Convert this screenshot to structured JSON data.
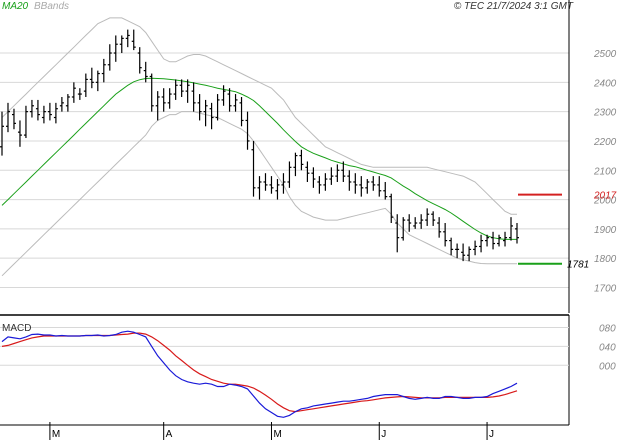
{
  "chart_data": {
    "type": "line",
    "legend": {
      "ma_label": "MA20",
      "bbands_label": "BBands"
    },
    "watermark": "© TEC 21/7/2024 3:1 GMT",
    "price_axis": {
      "ticks": [
        "2500",
        "2400",
        "2300",
        "2200",
        "2100",
        "2000",
        "1900",
        "1800",
        "1700"
      ],
      "ylim": [
        1630,
        2640
      ]
    },
    "macd_axis": {
      "label": "MACD",
      "ticks": [
        "080",
        "040",
        "000"
      ],
      "ylim": [
        -120,
        100
      ]
    },
    "x_ticks": [
      "M",
      "A",
      "M",
      "J",
      "J"
    ],
    "resistance": {
      "value": 2017,
      "label": "2017",
      "color": "#d42020"
    },
    "support": {
      "value": 1781,
      "label": "1781",
      "color": "#19a019"
    },
    "colors": {
      "ma": "#1aa01a",
      "bband": "#bbbbbb",
      "bars": "#000000",
      "macd": "#1a1ad8",
      "signal": "#d81a1a",
      "grid": "#d8d8d8"
    },
    "ohlc": [
      [
        2180,
        2300,
        2150,
        2250
      ],
      [
        2250,
        2330,
        2230,
        2300
      ],
      [
        2290,
        2310,
        2240,
        2260
      ],
      [
        2230,
        2270,
        2180,
        2220
      ],
      [
        2220,
        2320,
        2210,
        2300
      ],
      [
        2300,
        2340,
        2280,
        2320
      ],
      [
        2310,
        2340,
        2270,
        2290
      ],
      [
        2280,
        2320,
        2260,
        2300
      ],
      [
        2300,
        2330,
        2270,
        2290
      ],
      [
        2280,
        2330,
        2260,
        2310
      ],
      [
        2320,
        2350,
        2300,
        2330
      ],
      [
        2320,
        2360,
        2300,
        2350
      ],
      [
        2350,
        2400,
        2330,
        2380
      ],
      [
        2360,
        2380,
        2340,
        2360
      ],
      [
        2370,
        2430,
        2350,
        2410
      ],
      [
        2410,
        2450,
        2380,
        2400
      ],
      [
        2400,
        2440,
        2370,
        2430
      ],
      [
        2430,
        2480,
        2400,
        2460
      ],
      [
        2460,
        2530,
        2440,
        2500
      ],
      [
        2500,
        2560,
        2470,
        2530
      ],
      [
        2530,
        2560,
        2500,
        2550
      ],
      [
        2550,
        2580,
        2520,
        2560
      ],
      [
        2540,
        2580,
        2510,
        2520
      ],
      [
        2500,
        2520,
        2430,
        2450
      ],
      [
        2440,
        2470,
        2400,
        2420
      ],
      [
        2420,
        2430,
        2300,
        2320
      ],
      [
        2320,
        2370,
        2270,
        2350
      ],
      [
        2350,
        2380,
        2300,
        2330
      ],
      [
        2330,
        2380,
        2310,
        2360
      ],
      [
        2360,
        2410,
        2340,
        2390
      ],
      [
        2390,
        2410,
        2350,
        2370
      ],
      [
        2370,
        2410,
        2330,
        2390
      ],
      [
        2370,
        2400,
        2300,
        2330
      ],
      [
        2330,
        2360,
        2270,
        2300
      ],
      [
        2300,
        2340,
        2250,
        2320
      ],
      [
        2310,
        2330,
        2240,
        2280
      ],
      [
        2280,
        2360,
        2270,
        2340
      ],
      [
        2340,
        2390,
        2320,
        2370
      ],
      [
        2360,
        2380,
        2300,
        2320
      ],
      [
        2320,
        2360,
        2300,
        2340
      ],
      [
        2330,
        2350,
        2250,
        2270
      ],
      [
        2270,
        2300,
        2170,
        2200
      ],
      [
        2170,
        2200,
        2010,
        2040
      ],
      [
        2040,
        2080,
        2000,
        2060
      ],
      [
        2060,
        2090,
        2030,
        2050
      ],
      [
        2050,
        2080,
        2020,
        2040
      ],
      [
        2030,
        2070,
        2000,
        2050
      ],
      [
        2050,
        2090,
        2020,
        2060
      ],
      [
        2060,
        2130,
        2040,
        2110
      ],
      [
        2110,
        2160,
        2080,
        2150
      ],
      [
        2150,
        2170,
        2100,
        2120
      ],
      [
        2110,
        2130,
        2060,
        2090
      ],
      [
        2090,
        2110,
        2040,
        2070
      ],
      [
        2060,
        2080,
        2020,
        2050
      ],
      [
        2050,
        2090,
        2030,
        2070
      ],
      [
        2070,
        2110,
        2050,
        2080
      ],
      [
        2080,
        2120,
        2060,
        2100
      ],
      [
        2100,
        2130,
        2060,
        2080
      ],
      [
        2080,
        2100,
        2030,
        2060
      ],
      [
        2060,
        2090,
        2020,
        2050
      ],
      [
        2050,
        2080,
        2010,
        2040
      ],
      [
        2040,
        2070,
        2020,
        2060
      ],
      [
        2060,
        2080,
        2030,
        2050
      ],
      [
        2050,
        2080,
        2010,
        2030
      ],
      [
        2030,
        2060,
        2000,
        2010
      ],
      [
        2010,
        2020,
        1920,
        1940
      ],
      [
        1920,
        1950,
        1820,
        1870
      ],
      [
        1870,
        1940,
        1860,
        1930
      ],
      [
        1930,
        1950,
        1890,
        1920
      ],
      [
        1910,
        1940,
        1900,
        1920
      ],
      [
        1920,
        1950,
        1900,
        1930
      ],
      [
        1930,
        1970,
        1910,
        1950
      ],
      [
        1950,
        1960,
        1910,
        1930
      ],
      [
        1920,
        1940,
        1870,
        1890
      ],
      [
        1890,
        1920,
        1840,
        1860
      ],
      [
        1860,
        1870,
        1810,
        1830
      ],
      [
        1830,
        1850,
        1800,
        1830
      ],
      [
        1820,
        1850,
        1790,
        1810
      ],
      [
        1810,
        1840,
        1790,
        1830
      ],
      [
        1830,
        1860,
        1810,
        1840
      ],
      [
        1840,
        1880,
        1820,
        1860
      ],
      [
        1860,
        1880,
        1840,
        1870
      ],
      [
        1870,
        1890,
        1830,
        1850
      ],
      [
        1850,
        1880,
        1840,
        1870
      ],
      [
        1860,
        1890,
        1840,
        1870
      ],
      [
        1870,
        1940,
        1860,
        1910
      ],
      [
        1900,
        1920,
        1850,
        1870
      ]
    ],
    "ma20": [
      1980,
      2000,
      2020,
      2040,
      2060,
      2080,
      2100,
      2120,
      2140,
      2160,
      2180,
      2200,
      2220,
      2240,
      2260,
      2280,
      2300,
      2320,
      2340,
      2360,
      2375,
      2390,
      2402,
      2409,
      2413,
      2414,
      2413,
      2412,
      2410,
      2408,
      2405,
      2402,
      2398,
      2394,
      2390,
      2385,
      2380,
      2376,
      2372,
      2368,
      2360,
      2350,
      2338,
      2320,
      2300,
      2280,
      2260,
      2238,
      2218,
      2198,
      2180,
      2168,
      2158,
      2150,
      2142,
      2134,
      2128,
      2122,
      2116,
      2112,
      2106,
      2100,
      2094,
      2088,
      2082,
      2074,
      2060,
      2046,
      2034,
      2020,
      2008,
      1996,
      1986,
      1976,
      1966,
      1954,
      1940,
      1926,
      1912,
      1898,
      1886,
      1876,
      1870,
      1866,
      1864,
      1864,
      1864
    ],
    "bb_upper": [
      2280,
      2300,
      2320,
      2340,
      2360,
      2380,
      2400,
      2420,
      2440,
      2460,
      2480,
      2500,
      2520,
      2540,
      2560,
      2580,
      2600,
      2610,
      2620,
      2620,
      2620,
      2610,
      2600,
      2590,
      2570,
      2540,
      2510,
      2480,
      2470,
      2470,
      2480,
      2490,
      2495,
      2495,
      2490,
      2480,
      2470,
      2460,
      2450,
      2440,
      2430,
      2420,
      2410,
      2400,
      2390,
      2380,
      2360,
      2340,
      2310,
      2280,
      2260,
      2240,
      2220,
      2200,
      2180,
      2170,
      2160,
      2150,
      2140,
      2130,
      2120,
      2115,
      2110,
      2110,
      2110,
      2110,
      2110,
      2110,
      2110,
      2110,
      2110,
      2110,
      2105,
      2100,
      2095,
      2090,
      2085,
      2080,
      2070,
      2060,
      2040,
      2020,
      2000,
      1980,
      1960,
      1950,
      1950
    ],
    "bb_lower": [
      1740,
      1760,
      1780,
      1800,
      1820,
      1840,
      1860,
      1880,
      1900,
      1920,
      1940,
      1960,
      1980,
      2000,
      2020,
      2040,
      2060,
      2080,
      2100,
      2120,
      2140,
      2160,
      2180,
      2200,
      2220,
      2250,
      2270,
      2280,
      2290,
      2290,
      2300,
      2300,
      2300,
      2295,
      2290,
      2285,
      2280,
      2270,
      2260,
      2250,
      2240,
      2225,
      2200,
      2170,
      2140,
      2110,
      2080,
      2050,
      2010,
      1980,
      1960,
      1950,
      1940,
      1935,
      1930,
      1930,
      1930,
      1935,
      1940,
      1945,
      1950,
      1955,
      1960,
      1965,
      1970,
      1950,
      1920,
      1900,
      1880,
      1870,
      1860,
      1850,
      1840,
      1830,
      1820,
      1810,
      1800,
      1795,
      1790,
      1785,
      1782,
      1781,
      1781,
      1781,
      1781,
      1781,
      1781
    ],
    "macd": [
      50,
      60,
      58,
      56,
      60,
      65,
      66,
      64,
      64,
      62,
      63,
      62,
      62,
      62,
      63,
      63,
      64,
      62,
      63,
      65,
      70,
      72,
      70,
      65,
      60,
      40,
      20,
      5,
      -10,
      -22,
      -30,
      -35,
      -38,
      -40,
      -38,
      -40,
      -45,
      -45,
      -40,
      -42,
      -45,
      -50,
      -65,
      -80,
      -92,
      -100,
      -108,
      -110,
      -106,
      -98,
      -92,
      -90,
      -86,
      -84,
      -82,
      -80,
      -78,
      -76,
      -76,
      -74,
      -72,
      -70,
      -66,
      -64,
      -62,
      -62,
      -62,
      -66,
      -70,
      -72,
      -70,
      -68,
      -70,
      -70,
      -66,
      -66,
      -68,
      -70,
      -70,
      -68,
      -68,
      -66,
      -60,
      -55,
      -50,
      -45,
      -38
    ],
    "signal": [
      40,
      42,
      46,
      50,
      54,
      58,
      60,
      62,
      62,
      62,
      62,
      62,
      62,
      62,
      63,
      63,
      63,
      63,
      63,
      64,
      65,
      66,
      68,
      68,
      66,
      60,
      52,
      42,
      32,
      20,
      10,
      0,
      -10,
      -18,
      -24,
      -30,
      -34,
      -38,
      -40,
      -40,
      -42,
      -44,
      -48,
      -55,
      -63,
      -72,
      -82,
      -90,
      -96,
      -98,
      -96,
      -94,
      -92,
      -90,
      -88,
      -86,
      -84,
      -82,
      -80,
      -78,
      -76,
      -75,
      -73,
      -71,
      -69,
      -68,
      -67,
      -66,
      -67,
      -68,
      -69,
      -69,
      -69,
      -69,
      -68,
      -68,
      -68,
      -68,
      -68,
      -68,
      -68,
      -68,
      -67,
      -65,
      -62,
      -58,
      -54
    ]
  }
}
